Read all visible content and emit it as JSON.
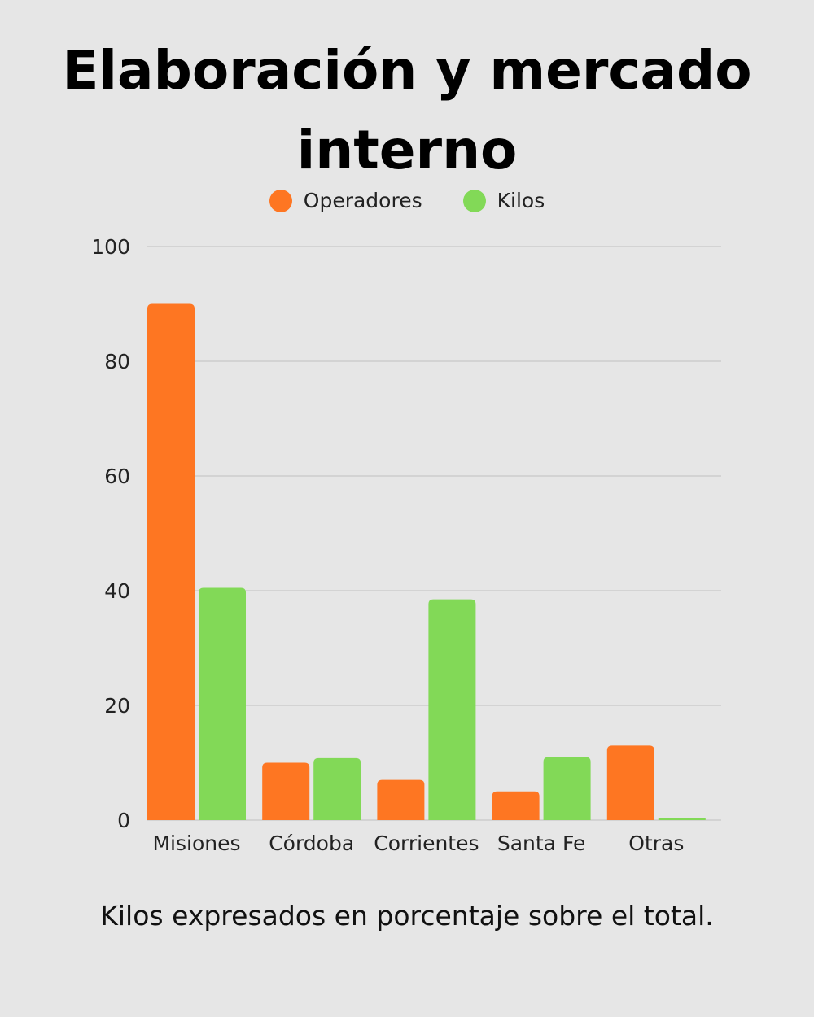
{
  "chart_data": {
    "type": "bar",
    "title": "Elaboración y mercado interno",
    "categories": [
      "Misiones",
      "Córdoba",
      "Corrientes",
      "Santa Fe",
      "Otras"
    ],
    "series": [
      {
        "name": "Operadores",
        "color": "#fe7622",
        "values": [
          90,
          10,
          7,
          5,
          13
        ]
      },
      {
        "name": "Kilos",
        "color": "#82d957",
        "values": [
          40.5,
          10.8,
          38.5,
          11,
          0
        ]
      }
    ],
    "ylim": [
      0,
      100
    ],
    "yticks": [
      0,
      20,
      40,
      60,
      80,
      100
    ],
    "grid": true,
    "legend": "top-center",
    "caption": "Kilos expresados en porcentaje sobre el total."
  }
}
